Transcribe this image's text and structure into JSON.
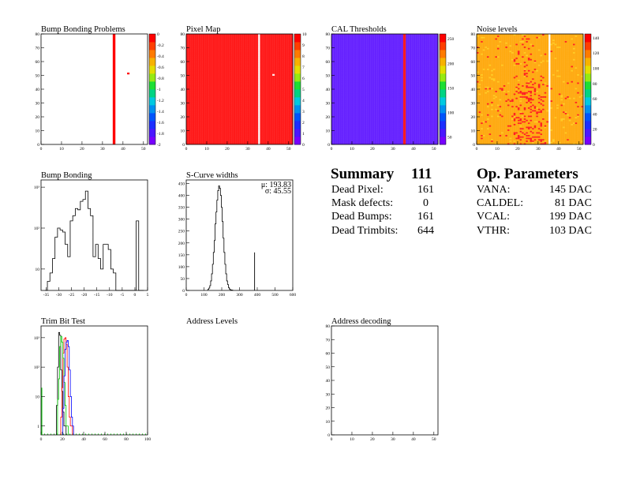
{
  "chart_data": [
    {
      "type": "heatmap",
      "title": "Bump Bonding Problems",
      "x_ticks": [
        "0",
        "10",
        "20",
        "30",
        "40",
        "50"
      ],
      "y_ticks": [
        "0",
        "10",
        "20",
        "30",
        "40",
        "50",
        "60",
        "70",
        "80"
      ],
      "xlim": [
        0,
        52
      ],
      "ylim": [
        0,
        80
      ],
      "zlim": [
        -2,
        0
      ],
      "z_ticks": [
        "0",
        "-0.2",
        "-0.4",
        "-0.6",
        "-0.8",
        "-1",
        "-1.2",
        "-1.4",
        "-1.6",
        "-1.8",
        "-2"
      ],
      "palette": "rainbow",
      "background": "#ffffff",
      "bands": [
        {
          "x": [
            35,
            36
          ],
          "value": -0.1,
          "color": "#ff0000"
        }
      ],
      "points": [
        {
          "x": 42,
          "y": 52,
          "color": "#ff0000"
        }
      ]
    },
    {
      "type": "heatmap",
      "title": "Pixel Map",
      "x_ticks": [
        "0",
        "10",
        "20",
        "30",
        "40",
        "50"
      ],
      "y_ticks": [
        "0",
        "10",
        "20",
        "30",
        "40",
        "50",
        "60",
        "70",
        "80"
      ],
      "xlim": [
        0,
        52
      ],
      "ylim": [
        0,
        80
      ],
      "zlim": [
        0,
        10
      ],
      "z_ticks": [
        "0",
        "1",
        "2",
        "3",
        "4",
        "5",
        "6",
        "7",
        "8",
        "9",
        "10"
      ],
      "palette": "rainbow",
      "fill_color": "#ff1a1a",
      "empty_columns": [
        [
          35,
          36
        ]
      ],
      "points": [
        {
          "x": 42,
          "y": 51,
          "color": "#ffe6e6"
        }
      ]
    },
    {
      "type": "heatmap",
      "title": "CAL Thresholds",
      "x_ticks": [
        "0",
        "10",
        "20",
        "30",
        "40",
        "50"
      ],
      "y_ticks": [
        "0",
        "10",
        "20",
        "30",
        "40",
        "50",
        "60",
        "70",
        "80"
      ],
      "xlim": [
        0,
        52
      ],
      "ylim": [
        0,
        80
      ],
      "zlim": [
        35,
        260
      ],
      "z_ticks": [
        "50",
        "100",
        "150",
        "200",
        "250"
      ],
      "palette": "rainbow",
      "fill_color": "#6622ff",
      "bands": [
        {
          "x": [
            35,
            36
          ],
          "value": 255,
          "color": "#ff1a1a"
        }
      ]
    },
    {
      "type": "heatmap",
      "title": "Noise levels",
      "x_ticks": [
        "0",
        "10",
        "20",
        "30",
        "40",
        "50"
      ],
      "y_ticks": [
        "0",
        "10",
        "20",
        "30",
        "40",
        "50",
        "60",
        "70",
        "80"
      ],
      "xlim": [
        0,
        52
      ],
      "ylim": [
        0,
        80
      ],
      "zlim": [
        0,
        145
      ],
      "z_ticks": [
        "0",
        "20",
        "40",
        "60",
        "80",
        "100",
        "120",
        "140"
      ],
      "palette": "rainbow",
      "fill_color": "#ffaa11",
      "hot_color": "#ff2020",
      "empty_columns": [
        [
          35,
          36
        ]
      ]
    },
    {
      "type": "bar",
      "title": "Bump Bonding",
      "log_y": true,
      "x_ticks": [
        "-35",
        "-30",
        "-25",
        "-20",
        "-15",
        "-10",
        "-5",
        "0",
        "5"
      ],
      "y_ticks": [
        "10",
        "10²",
        "10³"
      ],
      "xlim": [
        -37,
        5
      ],
      "ylim": [
        3,
        1500
      ],
      "bin_width": 1,
      "x": [
        -35,
        -34,
        -33,
        -32,
        -31,
        -30,
        -29,
        -28,
        -27,
        -26,
        -25,
        -24,
        -23,
        -22,
        -21,
        -20,
        -19,
        -18,
        -17,
        -16,
        -15,
        -14,
        -13,
        -12,
        -11,
        -10,
        -9,
        -8,
        -7,
        -6,
        -5,
        -4,
        -3,
        -2,
        -1,
        0,
        1,
        2,
        3
      ],
      "values": [
        0,
        5,
        8,
        18,
        60,
        100,
        90,
        80,
        40,
        20,
        150,
        200,
        300,
        280,
        450,
        500,
        800,
        300,
        200,
        20,
        40,
        18,
        10,
        40,
        40,
        30,
        10,
        8,
        0,
        0,
        0,
        0,
        0,
        0,
        0,
        0,
        150,
        0,
        0
      ]
    },
    {
      "type": "bar",
      "title": "S-Curve widths",
      "stats": [
        "μ: 193.83",
        "σ: 45.55"
      ],
      "x_ticks": [
        "0",
        "100",
        "200",
        "300",
        "400",
        "500",
        "600"
      ],
      "y_ticks": [
        "0",
        "50",
        "100",
        "150",
        "200",
        "250",
        "300",
        "350",
        "400",
        "450"
      ],
      "xlim": [
        0,
        600
      ],
      "ylim": [
        0,
        465
      ],
      "bin_width": 5,
      "x": [
        125,
        130,
        135,
        140,
        145,
        150,
        155,
        160,
        165,
        170,
        175,
        180,
        185,
        190,
        195,
        200,
        205,
        210,
        215,
        220,
        225,
        230,
        235,
        240,
        245,
        250,
        255,
        260,
        385
      ],
      "values": [
        5,
        10,
        20,
        40,
        70,
        110,
        160,
        210,
        280,
        330,
        380,
        420,
        440,
        430,
        400,
        350,
        290,
        220,
        160,
        110,
        70,
        40,
        25,
        12,
        6,
        3,
        2,
        1,
        160
      ]
    },
    {
      "type": "line",
      "title": "Trim Bit Test",
      "log_y": true,
      "x_ticks": [
        "0",
        "20",
        "40",
        "60",
        "80",
        "100"
      ],
      "y_ticks": [
        "1",
        "10",
        "10²",
        "10³"
      ],
      "xlim": [
        0,
        100
      ],
      "ylim": [
        0.5,
        2500
      ],
      "series": [
        {
          "color": "#000000",
          "x": [
            15,
            16,
            17,
            18,
            19,
            20,
            21,
            22,
            23
          ],
          "values": [
            5,
            100,
            1500,
            1200,
            80,
            15,
            3,
            1,
            1
          ]
        },
        {
          "color": "#ff0000",
          "x": [
            19,
            20,
            21,
            22,
            23,
            24,
            25,
            26,
            27,
            28,
            29
          ],
          "values": [
            2,
            20,
            300,
            900,
            1000,
            600,
            100,
            10,
            2,
            1,
            1
          ]
        },
        {
          "color": "#00cc00",
          "x": [
            16,
            17,
            18,
            19,
            20,
            21,
            22,
            23,
            24,
            25
          ],
          "values": [
            8,
            40,
            500,
            1100,
            700,
            200,
            30,
            5,
            1,
            1
          ]
        },
        {
          "color": "#0000ff",
          "x": [
            21,
            22,
            23,
            24,
            25,
            26,
            27,
            28,
            29,
            30
          ],
          "values": [
            4,
            50,
            400,
            700,
            800,
            500,
            80,
            10,
            2,
            1
          ]
        }
      ]
    },
    {
      "type": "heatmap",
      "title": "Address Levels",
      "empty": true
    },
    {
      "type": "heatmap",
      "title": "Address decoding",
      "x_ticks": [
        "0",
        "10",
        "20",
        "30",
        "40",
        "50"
      ],
      "y_ticks": [
        "0",
        "10",
        "20",
        "30",
        "40",
        "50",
        "60",
        "70",
        "80"
      ],
      "xlim": [
        0,
        52
      ],
      "ylim": [
        0,
        80
      ]
    }
  ],
  "summary": {
    "title": "Summary",
    "count": "111",
    "rows": [
      {
        "label": "Dead Pixel:",
        "value": "161"
      },
      {
        "label": "Mask defects:",
        "value": "0"
      },
      {
        "label": "Dead Bumps:",
        "value": "161"
      },
      {
        "label": "Dead Trimbits:",
        "value": "644"
      }
    ]
  },
  "op_parameters": {
    "title": "Op. Parameters",
    "rows": [
      {
        "label": "VANA:",
        "value": "145 DAC"
      },
      {
        "label": "CALDEL:",
        "value": "81 DAC"
      },
      {
        "label": "VCAL:",
        "value": "199 DAC"
      },
      {
        "label": "VTHR:",
        "value": "103 DAC"
      }
    ]
  }
}
